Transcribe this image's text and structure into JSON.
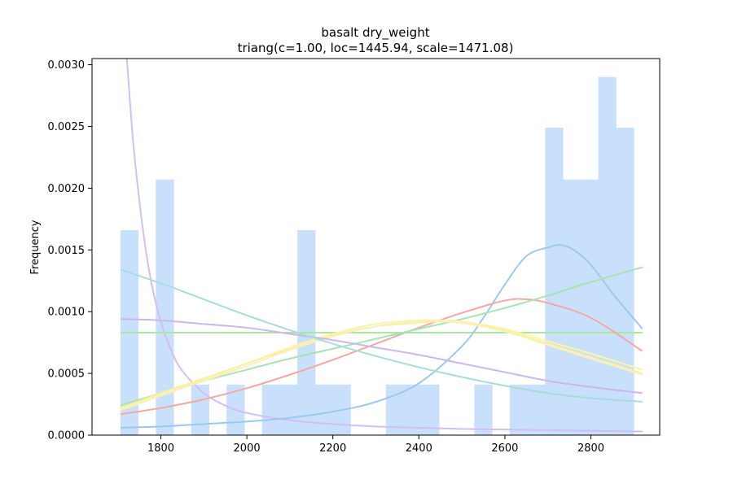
{
  "chart_data": {
    "type": "bar",
    "title": "basalt dry_weight",
    "subtitle": "triang(c=1.00, loc=1445.94, scale=1471.08)",
    "xlabel": "",
    "ylabel": "Frequency",
    "xlim": [
      1640,
      2960
    ],
    "ylim": [
      0,
      0.00305
    ],
    "x_ticks": [
      1800,
      2000,
      2200,
      2400,
      2600,
      2800
    ],
    "x_tick_labels": [
      "1800",
      "2000",
      "2200",
      "2400",
      "2600",
      "2800"
    ],
    "y_ticks": [
      0,
      0.0005,
      0.001,
      0.0015,
      0.002,
      0.0025,
      0.003
    ],
    "y_tick_labels": [
      "0.0000",
      "0.0005",
      "0.0010",
      "0.0015",
      "0.0020",
      "0.0025",
      "0.0030"
    ],
    "grid": false,
    "histogram": {
      "color": "#c8e0fc",
      "bin_start": 1706,
      "bin_width": 41.15,
      "values": [
        0.00166,
        0.0,
        0.00207,
        0.0,
        0.00041,
        0.0,
        0.00041,
        0.0,
        0.00041,
        0.00041,
        0.00166,
        0.00041,
        0.00041,
        0.0,
        0.0,
        0.00041,
        0.00041,
        0.00041,
        0.0,
        0.0,
        0.00041,
        0.0,
        0.00041,
        0.00041,
        0.00249,
        0.00207,
        0.00207,
        0.0029,
        0.00249
      ]
    },
    "series": [
      {
        "color": "#d4bdf4",
        "x": [
          1720,
          1735,
          1750,
          1765,
          1780,
          1800,
          1825,
          1850,
          1900,
          1950,
          2000,
          2100,
          2200,
          2300,
          2400,
          2500,
          2600,
          2700,
          2800,
          2920
        ],
        "y": [
          0.0031,
          0.0024,
          0.0019,
          0.0015,
          0.0012,
          0.00092,
          0.00068,
          0.00052,
          0.00034,
          0.00024,
          0.00018,
          0.00012,
          9e-05,
          7e-05,
          6e-05,
          5e-05,
          4.5e-05,
          4e-05,
          3.5e-05,
          3e-05
        ]
      },
      {
        "color": "#a8e8a0",
        "x": [
          1706,
          2920
        ],
        "y": [
          0.00083,
          0.00083
        ]
      },
      {
        "color": "#9cc8f0",
        "x": [
          1706,
          1800,
          1900,
          2000,
          2100,
          2200,
          2300,
          2400,
          2500,
          2550,
          2600,
          2650,
          2700,
          2730,
          2760,
          2800,
          2850,
          2920
        ],
        "y": [
          6e-05,
          7e-05,
          9e-05,
          0.00011,
          0.00014,
          0.00019,
          0.00027,
          0.00042,
          0.00072,
          0.00095,
          0.00122,
          0.00145,
          0.00152,
          0.00154,
          0.0015,
          0.00138,
          0.00115,
          0.00086
        ]
      },
      {
        "color": "#f4a8a4",
        "x": [
          1706,
          1800,
          1900,
          2000,
          2100,
          2200,
          2300,
          2400,
          2500,
          2600,
          2650,
          2700,
          2800,
          2920
        ],
        "y": [
          0.00017,
          0.00022,
          0.00029,
          0.00038,
          0.00049,
          0.00061,
          0.00074,
          0.00087,
          0.00099,
          0.00109,
          0.0011,
          0.00107,
          0.00095,
          0.00068
        ]
      },
      {
        "color": "#a8e4b0",
        "x": [
          1706,
          1800,
          1900,
          2000,
          2100,
          2200,
          2300,
          2400,
          2500,
          2600,
          2700,
          2800,
          2920
        ],
        "y": [
          0.00024,
          0.00034,
          0.00044,
          0.00053,
          0.00062,
          0.0007,
          0.00078,
          0.00086,
          0.00094,
          0.00103,
          0.00113,
          0.00124,
          0.00136
        ]
      },
      {
        "color": "#fcf4a8",
        "x": [
          1706,
          1800,
          1900,
          2000,
          2100,
          2200,
          2300,
          2400,
          2450,
          2500,
          2600,
          2700,
          2800,
          2920
        ],
        "y": [
          0.00021,
          0.00033,
          0.00045,
          0.00058,
          0.00071,
          0.00082,
          0.0009,
          0.00093,
          0.00093,
          0.00092,
          0.00086,
          0.00076,
          0.00066,
          0.00053
        ]
      },
      {
        "color": "#fcf0a0",
        "x": [
          1706,
          1800,
          1900,
          2000,
          2100,
          2200,
          2300,
          2400,
          2450,
          2500,
          2600,
          2700,
          2800,
          2920
        ],
        "y": [
          0.00022,
          0.00034,
          0.00046,
          0.00058,
          0.0007,
          0.00081,
          0.00088,
          0.00091,
          0.00092,
          0.00091,
          0.00085,
          0.00074,
          0.00063,
          0.0005
        ]
      },
      {
        "color": "#f8f0b8",
        "x": [
          1706,
          1800,
          1900,
          2000,
          2100,
          2200,
          2300,
          2400,
          2450,
          2500,
          2600,
          2700,
          2800,
          2920
        ],
        "y": [
          0.0002,
          0.00032,
          0.00044,
          0.00056,
          0.00069,
          0.0008,
          0.00088,
          0.00092,
          0.00092,
          0.00091,
          0.00084,
          0.00073,
          0.00062,
          0.00049
        ]
      },
      {
        "color": "#cbb6ee",
        "x": [
          1706,
          1800,
          1900,
          2000,
          2100,
          2200,
          2300,
          2400,
          2500,
          2600,
          2700,
          2800,
          2920
        ],
        "y": [
          0.00094,
          0.00093,
          0.0009,
          0.00087,
          0.00082,
          0.00077,
          0.00071,
          0.00065,
          0.00058,
          0.00051,
          0.00044,
          0.00039,
          0.00034
        ]
      },
      {
        "color": "#a8dcdc",
        "x": [
          1706,
          1800,
          1900,
          2000,
          2100,
          2200,
          2300,
          2400,
          2500,
          2600,
          2700,
          2800,
          2920
        ],
        "y": [
          0.00134,
          0.00123,
          0.0011,
          0.00097,
          0.00085,
          0.00074,
          0.00064,
          0.00055,
          0.00047,
          0.0004,
          0.00034,
          0.0003,
          0.00027
        ]
      }
    ]
  }
}
